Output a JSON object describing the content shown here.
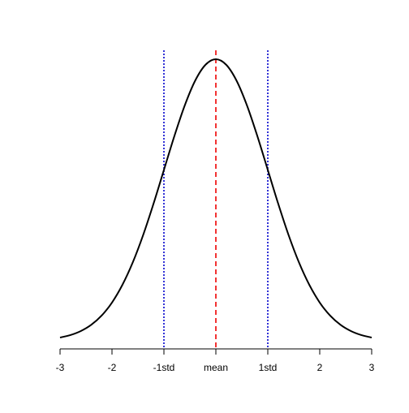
{
  "chart_data": {
    "type": "line",
    "title": "",
    "xlabel": "",
    "ylabel": "",
    "xlim": [
      -3,
      3
    ],
    "ylim": [
      0.0044,
      0.3989
    ],
    "grid": false,
    "x_ticks": [
      {
        "value": -3,
        "label": "-3"
      },
      {
        "value": -2,
        "label": "-2"
      },
      {
        "value": -1,
        "label": "-1std"
      },
      {
        "value": 0,
        "label": "mean"
      },
      {
        "value": 1,
        "label": "1std"
      },
      {
        "value": 2,
        "label": "2"
      },
      {
        "value": 3,
        "label": "3"
      }
    ],
    "series": [
      {
        "color": "#000000",
        "x": [
          -3.0,
          -2.8,
          -2.6,
          -2.4,
          -2.2,
          -2.0,
          -1.8,
          -1.6,
          -1.4,
          -1.2,
          -1.0,
          -0.8,
          -0.6,
          -0.4,
          -0.2,
          0.0,
          0.2,
          0.4,
          0.6,
          0.8,
          1.0,
          1.2,
          1.4,
          1.6,
          1.8,
          2.0,
          2.2,
          2.4,
          2.6,
          2.8,
          3.0
        ],
        "y": [
          0.0044,
          0.0079,
          0.0136,
          0.0224,
          0.0355,
          0.054,
          0.079,
          0.1109,
          0.1497,
          0.1942,
          0.242,
          0.2897,
          0.3332,
          0.3683,
          0.391,
          0.3989,
          0.391,
          0.3683,
          0.3332,
          0.2897,
          0.242,
          0.1942,
          0.1497,
          0.1109,
          0.079,
          0.054,
          0.0355,
          0.0224,
          0.0136,
          0.0079,
          0.0044
        ]
      }
    ],
    "vlines": [
      {
        "x": -1,
        "color": "#0000cc",
        "style": "dotted"
      },
      {
        "x": 0,
        "color": "#ee0000",
        "style": "dashed"
      },
      {
        "x": 1,
        "color": "#0000cc",
        "style": "dotted"
      }
    ]
  }
}
